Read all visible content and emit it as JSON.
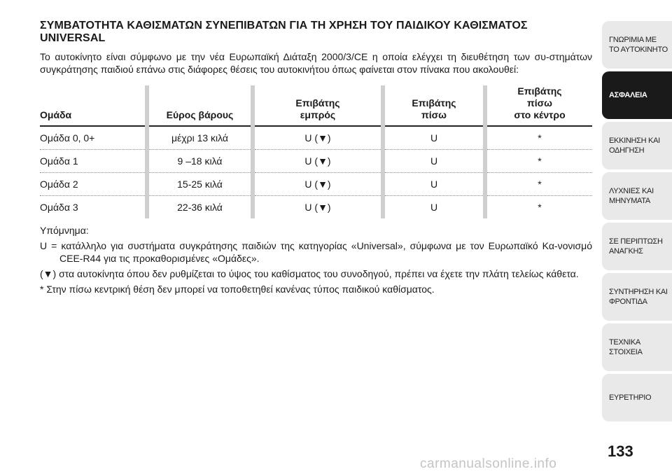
{
  "title": "ΣΥΜΒΑΤΟΤΗΤΑ ΚΑΘΙΣΜΑΤΩΝ ΣΥΝΕΠΙΒΑΤΩΝ ΓΙΑ ΤΗ ΧΡΗΣΗ ΤΟΥ ΠΑΙΔΙΚΟΥ ΚΑΘΙΣΜΑΤΟΣ UNIVERSAL",
  "intro": "Το αυτοκίνητο είναι σύμφωνο με την νέα Ευρωπαϊκή Διάταξη 2000/3/CE η οποία ελέγχει τη διευθέτηση των συ-στημάτων συγκράτησης παιδιού επάνω στις διάφορες θέσεις του αυτοκινήτου όπως φαίνεται στον πίνακα που ακολουθεί:",
  "table": {
    "headers": {
      "group": "Ομάδα",
      "weight": "Εύρος βάρους",
      "front": [
        "Επιβάτης",
        "εμπρός"
      ],
      "rear": [
        "Επιβάτης",
        "πίσω"
      ],
      "rear_center": [
        "Επιβάτης",
        "πίσω",
        "στο κέντρο"
      ]
    },
    "rows": [
      [
        "Ομάδα 0, 0+",
        "μέχρι 13 κιλά",
        "U (▼)",
        "U",
        "*"
      ],
      [
        "Ομάδα 1",
        "9 –18 κιλά",
        "U (▼)",
        "U",
        "*"
      ],
      [
        "Ομάδα 2",
        "15-25 κιλά",
        "U (▼)",
        "U",
        "*"
      ],
      [
        "Ομάδα 3",
        "22-36 κιλά",
        "U (▼)",
        "U",
        "*"
      ]
    ]
  },
  "notes": {
    "legend": "Υπόμνημα:",
    "u_note": "U = κατάλληλο για συστήματα συγκράτησης παιδιών της κατηγορίας «Universal», σύμφωνα με τον Ευρωπαϊκό Κα-νονισμό CEE-R44 για τις προκαθορισμένες «Ομάδες».",
    "triangle_note": "(▼) στα αυτοκίνητα όπου δεν ρυθμίζεται το ύψος του καθίσματος του συνοδηγού, πρέπει να έχετε την πλάτη τελείως κάθετα.",
    "star_note": "* Στην πίσω κεντρική θέση δεν μπορεί να τοποθετηθεί κανένας τύπος παιδικού καθίσματος."
  },
  "sidebar": {
    "tabs": [
      {
        "label": "ΓΝΩΡΙΜΙΑ ΜΕ ΤΟ ΑΥΤΟΚΙΝΗΤΟ"
      },
      {
        "label": "ΑΣΦΑΛΕΙΑ"
      },
      {
        "label": "ΕΚΚΙΝΗΣΗ ΚΑΙ ΟΔΗΓΗΣΗ"
      },
      {
        "label": "ΛΥΧΝΙΕΣ ΚΑΙ ΜΗΝΥΜΑΤΑ"
      },
      {
        "label": "ΣΕ ΠΕΡΙΠΤΩΣΗ ΑΝΑΓΚΗΣ"
      },
      {
        "label": "ΣΥΝΤΗΡΗΣΗ ΚΑΙ ΦΡΟΝΤΙΔΑ"
      },
      {
        "label": "ΤΕΧΝΙΚΑ ΣΤΟΙΧΕΙΑ"
      },
      {
        "label": "ΕΥΡΕΤΗΡΙΟ"
      }
    ],
    "active_index": 1
  },
  "page_number": "133",
  "watermark": "carmanualsonline.info"
}
